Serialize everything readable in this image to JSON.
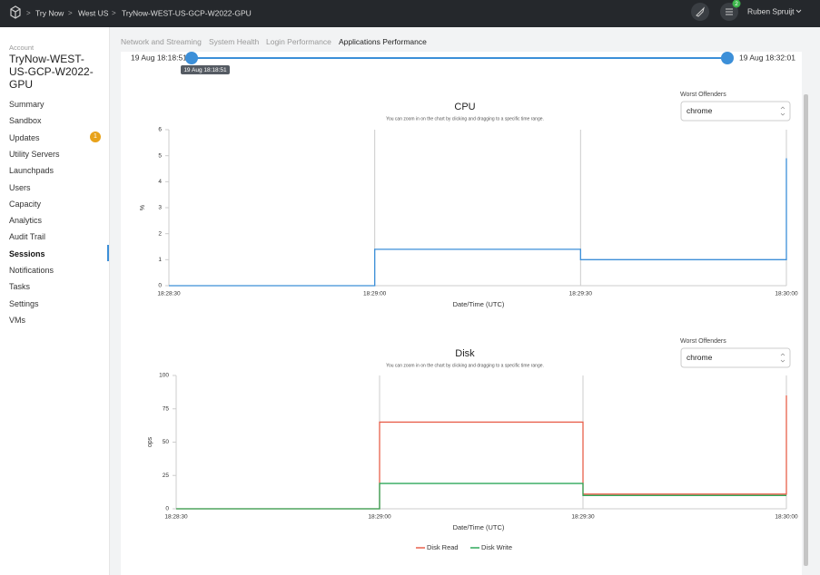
{
  "topbar": {
    "breadcrumbs": [
      "Try Now",
      "West US",
      "TryNow-WEST-US-GCP-W2022-GPU"
    ],
    "task_count": "2",
    "user": "Ruben Spruijt"
  },
  "sidebar": {
    "account_label": "Account",
    "account_name": "TryNow-WEST-US-GCP-W2022-GPU",
    "items": [
      "Summary",
      "Sandbox",
      "Updates",
      "Utility Servers",
      "Launchpads",
      "Users",
      "Capacity",
      "Analytics",
      "Audit Trail",
      "Sessions",
      "Notifications",
      "Tasks",
      "Settings",
      "VMs"
    ],
    "updates_badge": "1",
    "active": "Sessions"
  },
  "tabs": {
    "items": [
      "Network and Streaming",
      "System Health",
      "Login Performance",
      "Applications Performance"
    ],
    "active": "Applications Performance"
  },
  "range": {
    "start": "19 Aug 18:18:51",
    "end": "19 Aug 18:32:01",
    "tooltip": "19 Aug 18:18:51"
  },
  "charts": [
    {
      "type": "line",
      "title": "CPU",
      "subtitle": "You can zoom in on the chart by clicking and dragging to a specific time range.",
      "y_label": "%",
      "x_label": "Date/Time (UTC)",
      "selector_label": "Worst Offenders",
      "selector_value": "chrome",
      "x": [
        "18:28:30",
        "18:29:00",
        "18:29:30",
        "18:30:00"
      ],
      "values": [
        0,
        1.4,
        1,
        4.9
      ],
      "color": "#3c8fd8",
      "ylim": [
        0,
        6
      ],
      "yticks": [
        0,
        1,
        2,
        3,
        4,
        5,
        6
      ]
    },
    {
      "type": "line",
      "title": "Disk",
      "subtitle": "You can zoom in on the chart by clicking and dragging to a specific time range.",
      "y_label": "ops",
      "x_label": "Date/Time (UTC)",
      "selector_label": "Worst Offenders",
      "selector_value": "chrome",
      "x": [
        "18:28:30",
        "18:29:00",
        "18:29:30",
        "18:30:00"
      ],
      "series": [
        {
          "name": "Disk Read",
          "color": "#e8604c",
          "values": [
            0,
            65,
            11,
            85
          ]
        },
        {
          "name": "Disk Write",
          "color": "#2fa85a",
          "values": [
            0,
            19,
            10,
            10
          ]
        }
      ],
      "ylim": [
        0,
        100
      ],
      "yticks": [
        0,
        25,
        50,
        75,
        100
      ]
    }
  ]
}
